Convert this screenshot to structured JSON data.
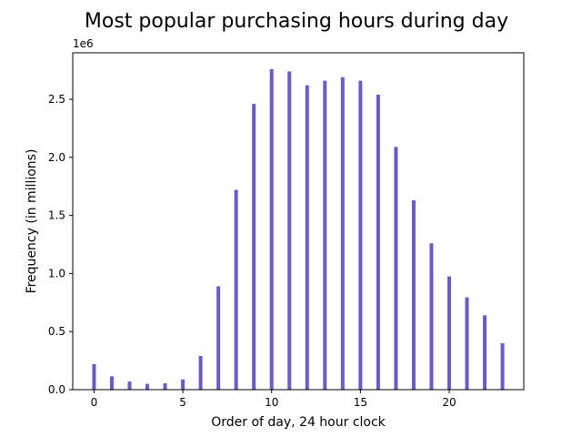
{
  "chart_data": {
    "type": "bar",
    "title": "Most popular purchasing hours during day",
    "xlabel": "Order of day, 24 hour clock",
    "ylabel": "Frequency (in millions)",
    "y_offset_label": "1e6",
    "bar_color": "#6a5acd",
    "x": [
      0,
      1,
      2,
      3,
      4,
      5,
      6,
      7,
      8,
      9,
      10,
      11,
      12,
      13,
      14,
      15,
      16,
      17,
      18,
      19,
      20,
      21,
      22,
      23
    ],
    "values": [
      220000,
      115000,
      70000,
      50000,
      55000,
      88000,
      290000,
      890000,
      1720000,
      2460000,
      2760000,
      2740000,
      2620000,
      2660000,
      2690000,
      2660000,
      2540000,
      2090000,
      1630000,
      1260000,
      975000,
      795000,
      640000,
      400000
    ],
    "xlim": [
      -1.2,
      24.2
    ],
    "ylim": [
      0,
      2900000
    ],
    "xticks": [
      0,
      5,
      10,
      15,
      20
    ],
    "xtick_labels": [
      "0",
      "5",
      "10",
      "15",
      "20"
    ],
    "yticks": [
      0,
      500000,
      1000000,
      1500000,
      2000000,
      2500000
    ],
    "ytick_labels": [
      "0.0",
      "0.5",
      "1.0",
      "1.5",
      "2.0",
      "2.5"
    ],
    "grid": false,
    "legend": "none"
  }
}
